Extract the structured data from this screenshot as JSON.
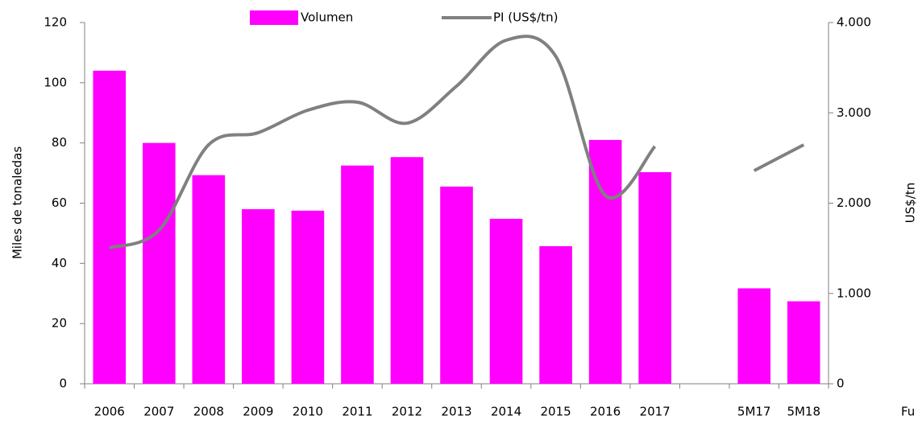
{
  "chart_data": {
    "type": "bar_line",
    "categories": [
      "2006",
      "2007",
      "2008",
      "2009",
      "2010",
      "2011",
      "2012",
      "2013",
      "2014",
      "2015",
      "2016",
      "2017",
      null,
      "5M17",
      "5M18"
    ],
    "series": [
      {
        "name": "Volumen",
        "color": "#ff00ff",
        "type": "bar",
        "values": [
          104,
          80,
          69.3,
          58,
          57.5,
          72.5,
          75.3,
          65.5,
          54.8,
          45.7,
          81,
          70.3,
          null,
          31.7,
          27.4
        ]
      },
      {
        "name": "PI (US$/tn)",
        "color": "#808080",
        "type": "line",
        "axis": "y2",
        "values": [
          1505,
          1700,
          2646,
          2780,
          3029,
          3118,
          2886,
          3296,
          3804,
          3626,
          2085,
          2628,
          null,
          2360,
          2646
        ]
      }
    ],
    "ylabel": "Miles de tonaledas",
    "y2label": "US$/tn",
    "ylim": [
      0,
      120
    ],
    "yticks": [
      0,
      20,
      40,
      60,
      80,
      100,
      120
    ],
    "y2lim": [
      0,
      4000
    ],
    "y2ticks": [
      0,
      {
        "value": 1000,
        "label": "1.000"
      },
      {
        "value": 2000,
        "label": "2.000"
      },
      {
        "value": 3000,
        "label": "3.000"
      },
      {
        "value": 4000,
        "label": "4.000"
      }
    ],
    "source": "Fu"
  }
}
